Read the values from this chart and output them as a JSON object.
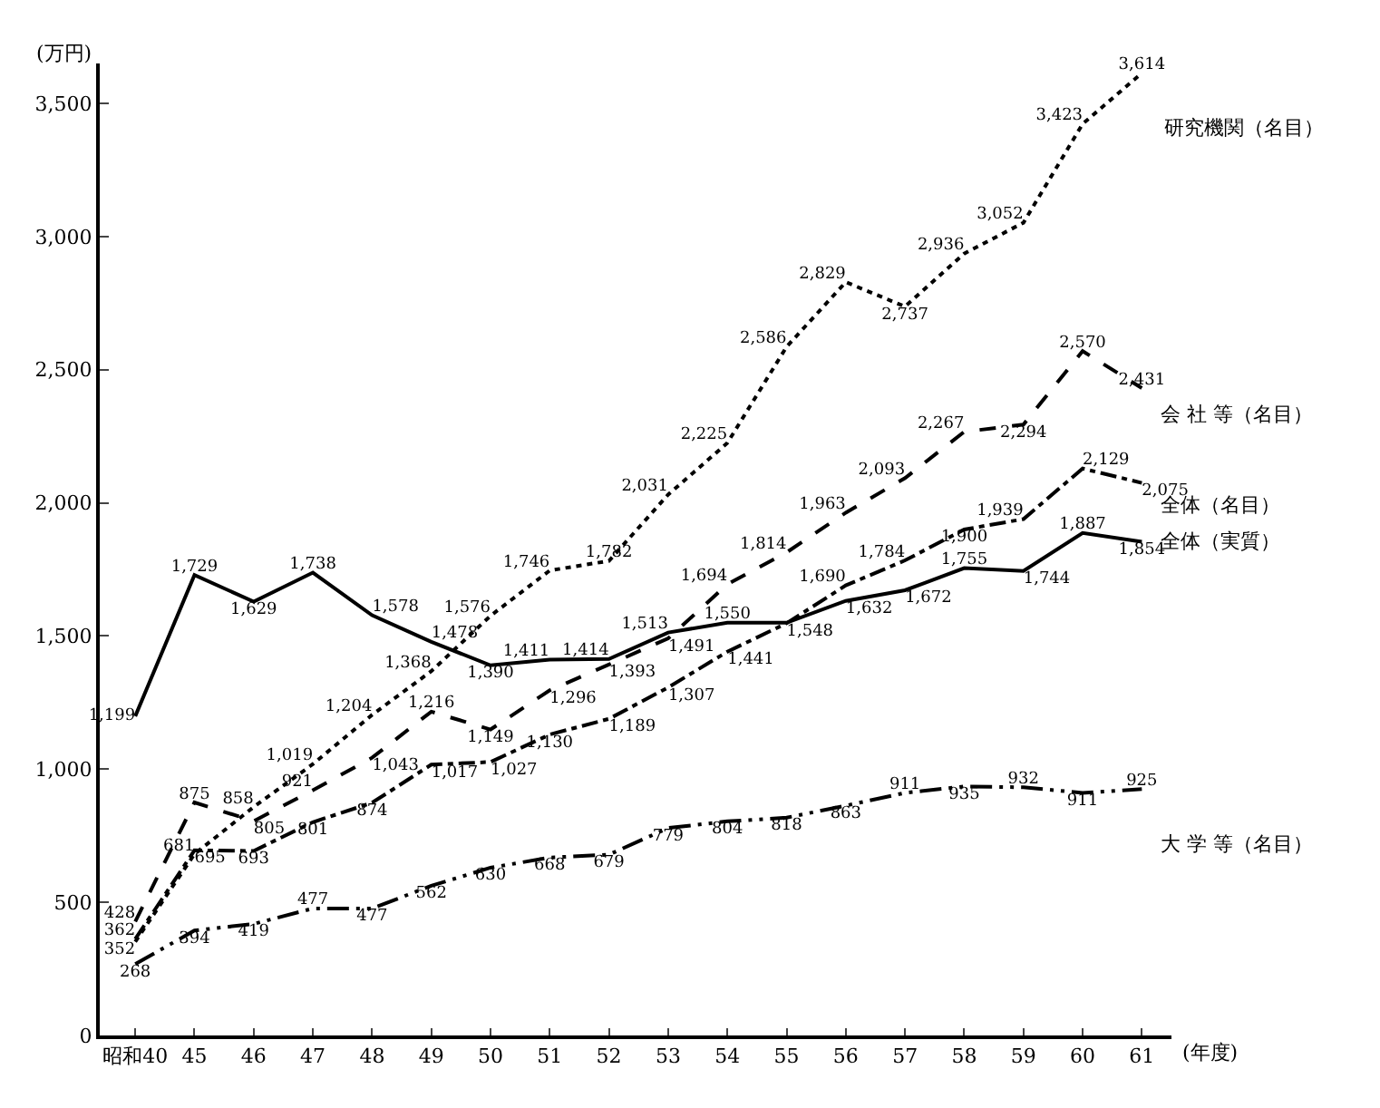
{
  "chart_data": {
    "type": "line",
    "ylabel": "(万円)",
    "xlabel": "(年度)",
    "categories": [
      "昭和40",
      "45",
      "46",
      "47",
      "48",
      "49",
      "50",
      "51",
      "52",
      "53",
      "54",
      "55",
      "56",
      "57",
      "58",
      "59",
      "60",
      "61"
    ],
    "ylim": [
      0,
      3650
    ],
    "yticks": [
      0,
      500,
      {
        "value": 1000,
        "label": "1,000"
      },
      {
        "value": 1500,
        "label": "1,500"
      },
      {
        "value": 2000,
        "label": "2,000"
      },
      {
        "value": 2500,
        "label": "2,500"
      },
      {
        "value": 3000,
        "label": "3,000"
      },
      {
        "value": 3500,
        "label": "3,500"
      }
    ],
    "legend": false,
    "marker": "none",
    "series": [
      {
        "name": "研究機関（名目）",
        "color": "#000000",
        "line_style": "dotted",
        "values": [
          352,
          681,
          858,
          1019,
          1204,
          1368,
          1576,
          1746,
          1782,
          2031,
          2225,
          2586,
          2829,
          2737,
          2936,
          3052,
          3423,
          3614
        ],
        "value_labels": [
          "352",
          "681",
          "858",
          "1,019",
          "1,204",
          "1,368",
          "1,576",
          "1,746",
          "1,782",
          "2,031",
          "2,225",
          "2,586",
          "2,829",
          "2,737",
          "2,936",
          "3,052",
          "3,423",
          "3,614"
        ]
      },
      {
        "name": "会 社 等（名目）",
        "color": "#000000",
        "line_style": "dashed",
        "values": [
          428,
          875,
          805,
          921,
          1043,
          1216,
          1149,
          1296,
          1393,
          1491,
          1694,
          1814,
          1963,
          2093,
          2267,
          2294,
          2570,
          2431
        ],
        "value_labels": [
          "428",
          "875",
          "805",
          "921",
          "1,043",
          "1,216",
          "1,149",
          "1,296",
          "1,393",
          "1,491",
          "1,694",
          "1,814",
          "1,963",
          "2,093",
          "2,267",
          "2,294",
          "2,570",
          "2,431"
        ]
      },
      {
        "name": "全体（名目）",
        "color": "#000000",
        "line_style": "dashdot",
        "values": [
          362,
          695,
          693,
          801,
          874,
          1017,
          1027,
          1130,
          1189,
          1307,
          1441,
          1548,
          1690,
          1784,
          1900,
          1939,
          2129,
          2075
        ],
        "value_labels": [
          "362",
          "695",
          "693",
          "801",
          "874",
          "1,017",
          "1,027",
          "1,130",
          "1,189",
          "1,307",
          "1,441",
          "1,548",
          "1,690",
          "1,784",
          "1,900",
          "1,939",
          "2,129",
          "2,075"
        ]
      },
      {
        "name": "全体（実質）",
        "color": "#000000",
        "line_style": "solid",
        "values": [
          1199,
          1729,
          1629,
          1738,
          1578,
          1478,
          1390,
          1411,
          1414,
          1513,
          1550,
          1550,
          1632,
          1672,
          1755,
          1744,
          1887,
          1854
        ],
        "value_labels": [
          "1,199",
          "1,729",
          "1,629",
          "1,738",
          "1,578",
          "1,478",
          "1,390",
          "1,411",
          "1,414",
          "1,513",
          "1,550",
          null,
          "1,632",
          "1,672",
          "1,755",
          "1,744",
          "1,887",
          "1,854"
        ]
      },
      {
        "name": "大 学 等（名目）",
        "color": "#000000",
        "line_style": "dashdotdot",
        "values": [
          268,
          394,
          419,
          477,
          477,
          562,
          630,
          668,
          679,
          779,
          804,
          818,
          863,
          911,
          935,
          932,
          911,
          925
        ],
        "value_labels": [
          "268",
          "394",
          "419",
          "477",
          "477",
          "562",
          "630",
          "668",
          "679",
          "779",
          "804",
          "818",
          "863",
          "911",
          "935",
          "932",
          "911",
          "925"
        ]
      }
    ]
  }
}
